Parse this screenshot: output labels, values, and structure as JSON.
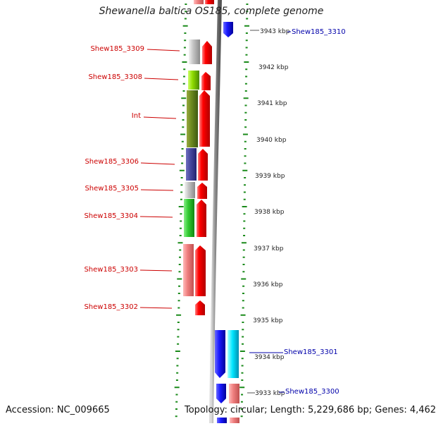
{
  "title": "Shewanella baltica OS185, complete genome",
  "accession": "Accession: NC_009665",
  "summary": "Topology: circular; Length: 5,229,686 bp; Genes: 4,462",
  "scale_labels": [
    "3943 kbp",
    "3942 kbp",
    "3941 kbp",
    "3940 kbp",
    "3939 kbp",
    "3938 kbp",
    "3937 kbp",
    "3936 kbp",
    "3935 kbp",
    "3934 kbp",
    "3933 kbp"
  ],
  "left_gene_labels": [
    "Shew185_3309",
    "Shew185_3308",
    "Int",
    "Shew185_3306",
    "Shew185_3305",
    "Shew185_3304",
    "Shew185_3303",
    "Shew185_3302"
  ],
  "right_gene_labels": [
    "Shew185_3310",
    "Shew185_3301",
    "Shew185_3300"
  ],
  "colors": {
    "forward_gene": "#ff0000",
    "reverse_gene": "#1a1aff",
    "left_label": "#cc0000",
    "right_label": "#0000aa",
    "ticks": "#1a8a1a",
    "backbone": "#888888"
  }
}
